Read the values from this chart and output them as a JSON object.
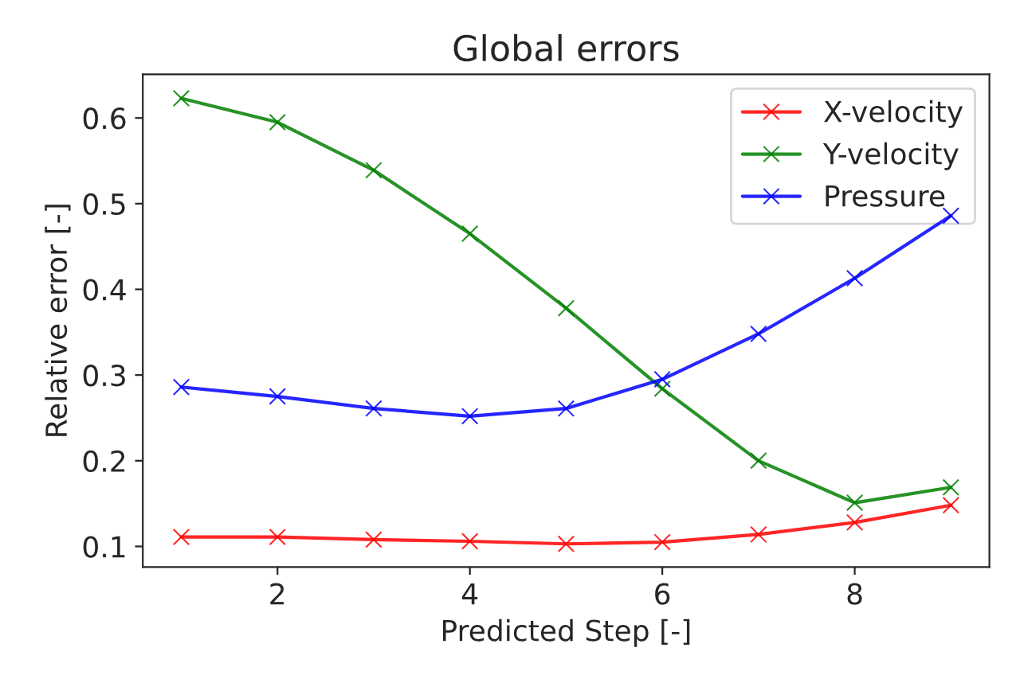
{
  "chart_data": {
    "type": "line",
    "title": "Global errors",
    "xlabel": "Predicted Step [-]",
    "ylabel": "Relative error [-]",
    "x": [
      1,
      2,
      3,
      4,
      5,
      6,
      7,
      8,
      9
    ],
    "series": [
      {
        "name": "X-velocity",
        "color": "#ff0000",
        "values": [
          0.111,
          0.111,
          0.108,
          0.106,
          0.103,
          0.105,
          0.114,
          0.128,
          0.148
        ]
      },
      {
        "name": "Y-velocity",
        "color": "#008000",
        "values": [
          0.623,
          0.595,
          0.539,
          0.465,
          0.378,
          0.284,
          0.2,
          0.151,
          0.169
        ]
      },
      {
        "name": "Pressure",
        "color": "#0000ff",
        "values": [
          0.286,
          0.275,
          0.261,
          0.252,
          0.261,
          0.295,
          0.348,
          0.413,
          0.486
        ]
      }
    ],
    "xlim": [
      0.6,
      9.4
    ],
    "ylim": [
      0.076,
      0.651
    ],
    "xticks": [
      2,
      4,
      6,
      8
    ],
    "yticks": [
      0.1,
      0.2,
      0.3,
      0.4,
      0.5,
      0.6
    ],
    "marker": "cross",
    "line_style": "solid",
    "legend": "top right",
    "grid": false
  }
}
